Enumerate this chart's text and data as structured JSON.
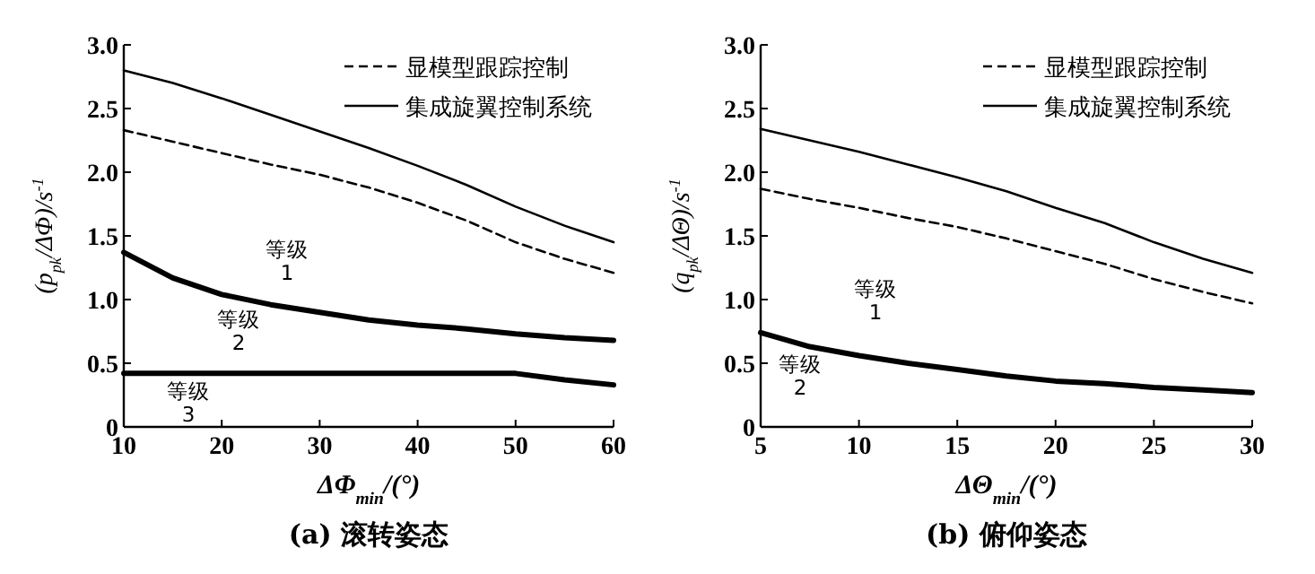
{
  "chart_data": [
    {
      "type": "line",
      "title": "(a) 滚转姿态",
      "xlabel": "ΔΦ$_{min}$/(°)",
      "ylabel": "(p$_{pk}$/ΔΦ)/s$^{-1}$",
      "xlim": [
        10,
        60
      ],
      "xticks": [
        10,
        20,
        30,
        40,
        50,
        60
      ],
      "ylim": [
        0,
        3
      ],
      "yticks": [
        0,
        0.5,
        {
          "value": 1,
          "label": "1.0"
        },
        1.5,
        {
          "value": 2,
          "label": "2.0"
        },
        2.5,
        {
          "value": 3,
          "label": "3.0"
        }
      ],
      "x": [
        10,
        15,
        20,
        25,
        30,
        35,
        40,
        45,
        50,
        55,
        60
      ],
      "legend": "top right",
      "grid": false,
      "marker": "none",
      "series": [
        {
          "name": "显模型跟踪控制",
          "color": "#000000",
          "line_style": "dashed",
          "values": [
            2.33,
            2.24,
            2.15,
            2.06,
            1.98,
            1.88,
            1.76,
            1.62,
            1.45,
            1.32,
            1.21
          ]
        },
        {
          "name": "集成旋翼控制系统",
          "color": "#000000",
          "line_style": "solid",
          "values": [
            2.8,
            2.7,
            2.58,
            2.45,
            2.32,
            2.19,
            2.05,
            1.9,
            1.73,
            1.58,
            1.45
          ]
        },
        {
          "color": "#000000",
          "line_style": "solid",
          "values": [
            1.37,
            1.17,
            1.04,
            0.96,
            0.9,
            0.84,
            0.8,
            0.77,
            0.73,
            0.7,
            0.68
          ]
        },
        {
          "color": "#000000",
          "line_style": "solid",
          "values": [
            0.42,
            0.42,
            0.42,
            0.42,
            0.42,
            0.42,
            0.42,
            0.42,
            0.42,
            0.37,
            0.33
          ]
        }
      ],
      "annotations": [
        "等级\n1",
        "等级\n2",
        "等级\n3"
      ]
    },
    {
      "type": "line",
      "title": "(b) 俯仰姿态",
      "xlabel": "ΔΘ$_{min}$/(°)",
      "ylabel": "(q$_{pk}$/ΔΘ)/s$^{-1}$",
      "xlim": [
        5,
        30
      ],
      "xticks": [
        5,
        10,
        15,
        20,
        25,
        30
      ],
      "ylim": [
        0,
        3
      ],
      "yticks": [
        0,
        0.5,
        {
          "value": 1,
          "label": "1.0"
        },
        1.5,
        {
          "value": 2,
          "label": "2.0"
        },
        2.5,
        {
          "value": 3,
          "label": "3.0"
        }
      ],
      "x": [
        5,
        7.5,
        10,
        12.5,
        15,
        17.5,
        20,
        22.5,
        25,
        27.5,
        30
      ],
      "legend": "top right",
      "grid": false,
      "marker": "none",
      "series": [
        {
          "name": "显模型跟踪控制",
          "color": "#000000",
          "line_style": "dashed",
          "values": [
            1.87,
            1.79,
            1.72,
            1.64,
            1.57,
            1.48,
            1.38,
            1.28,
            1.16,
            1.06,
            0.97
          ]
        },
        {
          "name": "集成旋翼控制系统",
          "color": "#000000",
          "line_style": "solid",
          "values": [
            2.34,
            2.25,
            2.16,
            2.06,
            1.96,
            1.85,
            1.72,
            1.6,
            1.45,
            1.32,
            1.21
          ]
        },
        {
          "color": "#000000",
          "line_style": "solid",
          "values": [
            0.74,
            0.63,
            0.56,
            0.5,
            0.45,
            0.4,
            0.36,
            0.34,
            0.31,
            0.29,
            0.27
          ]
        }
      ],
      "annotations": [
        "等级\n1",
        "等级\n2"
      ]
    }
  ]
}
